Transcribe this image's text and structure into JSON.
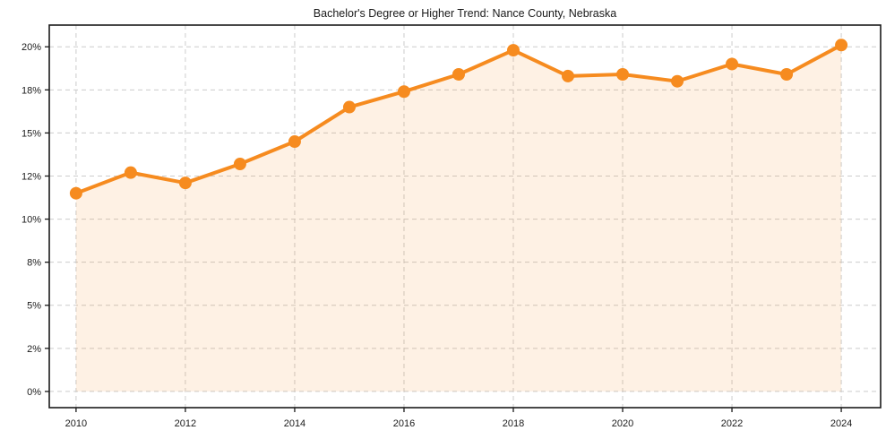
{
  "chart_data": {
    "type": "area",
    "title": "Bachelor's Degree or Higher Trend: Nance County, Nebraska",
    "xlabel": "",
    "ylabel": "",
    "x": [
      2010,
      2011,
      2012,
      2013,
      2014,
      2015,
      2016,
      2017,
      2018,
      2019,
      2020,
      2021,
      2022,
      2023,
      2024
    ],
    "series": [
      {
        "name": "Bachelor's Degree or Higher (%)",
        "values": [
          11.5,
          12.7,
          12.1,
          13.2,
          14.5,
          16.5,
          17.4,
          18.4,
          19.8,
          18.3,
          18.4,
          18.0,
          19.0,
          18.4,
          20.1
        ]
      }
    ],
    "x_ticks": [
      {
        "value": 2010,
        "label": "2010"
      },
      {
        "value": 2012,
        "label": "2012"
      },
      {
        "value": 2014,
        "label": "2014"
      },
      {
        "value": 2016,
        "label": "2016"
      },
      {
        "value": 2018,
        "label": "2018"
      },
      {
        "value": 2020,
        "label": "2020"
      },
      {
        "value": 2022,
        "label": "2022"
      },
      {
        "value": 2024,
        "label": "2024"
      }
    ],
    "y_ticks": [
      {
        "value": 0,
        "label": "0%"
      },
      {
        "value": 2.5,
        "label": "2%"
      },
      {
        "value": 5,
        "label": "5%"
      },
      {
        "value": 7.5,
        "label": "8%"
      },
      {
        "value": 10,
        "label": "10%"
      },
      {
        "value": 12.5,
        "label": "12%"
      },
      {
        "value": 15,
        "label": "15%"
      },
      {
        "value": 17.5,
        "label": "18%"
      },
      {
        "value": 20,
        "label": "20%"
      }
    ],
    "xlim": [
      2009.51,
      2024.72
    ],
    "ylim": [
      -0.94,
      21.26
    ],
    "grid": true,
    "legend": false,
    "fill_baseline": 0,
    "colors": {
      "line": "#F68B1F",
      "marker": "#F68B1F",
      "fill": "rgba(246,139,31,0.12)",
      "grid": "#cccccc",
      "axis": "#1a1a1a",
      "text": "#1a1a1a",
      "background": "#ffffff"
    }
  }
}
